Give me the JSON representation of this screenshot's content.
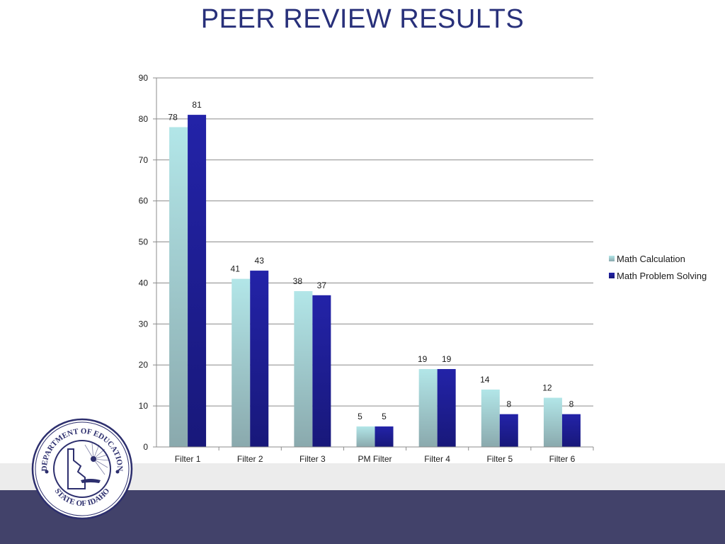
{
  "title": "PEER REVIEW RESULTS",
  "colors": {
    "title": "#28307a",
    "series": [
      "#a7dcdf",
      "#1f1f9c"
    ],
    "footer_dark": "#42426a",
    "footer_light": "#ececec"
  },
  "chart_data": {
    "type": "bar",
    "title": "",
    "xlabel": "",
    "ylabel": "",
    "categories": [
      "Filter 1",
      "Filter 2",
      "Filter 3",
      "PM Filter",
      "Filter 4",
      "Filter 5",
      "Filter 6"
    ],
    "series": [
      {
        "name": "Math Calculation",
        "values": [
          78,
          41,
          38,
          5,
          19,
          14,
          12
        ]
      },
      {
        "name": "Math Problem Solving",
        "values": [
          81,
          43,
          37,
          5,
          19,
          8,
          8
        ]
      }
    ],
    "ylim": [
      0,
      90
    ],
    "yticks": [
      0,
      10,
      20,
      30,
      40,
      50,
      60,
      70,
      80,
      90
    ],
    "grid": true,
    "legend": "right",
    "data_labels": true
  },
  "logo": {
    "text_top": "DEPARTMENT OF EDUCATION",
    "text_bottom": "STATE OF IDAHO"
  }
}
